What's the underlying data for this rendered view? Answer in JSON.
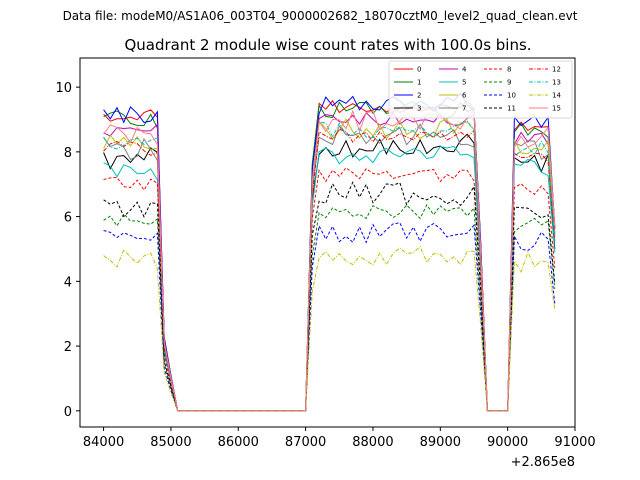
{
  "chart_data": {
    "type": "line",
    "suptitle": "Data file: modeM0/AS1A06_003T04_9000002682_18070cztM0_level2_quad_clean.evt",
    "title": "Quadrant 2 module wise count rates with 100.0s bins.",
    "xlabel": "",
    "ylabel": "",
    "x_offset_label": "+2.865e8",
    "xlim": [
      83650,
      91000
    ],
    "ylim": [
      -0.5,
      10.9
    ],
    "x_ticks": [
      84000,
      85000,
      86000,
      87000,
      88000,
      89000,
      90000,
      91000
    ],
    "x_tick_labels": [
      "84000",
      "85000",
      "86000",
      "87000",
      "88000",
      "89000",
      "90000",
      "91000"
    ],
    "y_ticks": [
      0,
      2,
      4,
      6,
      8,
      10
    ],
    "y_tick_labels": [
      "0",
      "2",
      "4",
      "6",
      "8",
      "10"
    ],
    "legend_position": "top-right",
    "grid": false,
    "segments": [
      {
        "start": 84000,
        "count": 9,
        "step": 100
      },
      {
        "start": 84900,
        "count": 21,
        "step": 100
      },
      {
        "start": 87000,
        "count": 26,
        "step": 100
      },
      {
        "start": 89600,
        "count": 4,
        "step": 100
      },
      {
        "start": 90000,
        "count": 8,
        "step": 100
      }
    ],
    "series": [
      {
        "name": "0",
        "color": "#ff0000",
        "dash": "solid",
        "base": 9.1,
        "post": 9.4,
        "final": 8.8
      },
      {
        "name": "1",
        "color": "#008000",
        "dash": "solid",
        "base": 9.0,
        "post": 9.3,
        "final": 8.7
      },
      {
        "name": "2",
        "color": "#0000ff",
        "dash": "solid",
        "base": 9.1,
        "post": 9.5,
        "final": 8.8
      },
      {
        "name": "3",
        "color": "#000000",
        "dash": "solid",
        "base": 7.8,
        "post": 8.2,
        "final": 7.7
      },
      {
        "name": "4",
        "color": "#bf00bf",
        "dash": "solid",
        "base": 8.7,
        "post": 9.0,
        "final": 8.4
      },
      {
        "name": "5",
        "color": "#00bfbf",
        "dash": "solid",
        "base": 7.4,
        "post": 7.9,
        "final": 7.5
      },
      {
        "name": "6",
        "color": "#bfbf00",
        "dash": "solid",
        "base": 8.3,
        "post": 8.7,
        "final": 8.2
      },
      {
        "name": "7",
        "color": "#808080",
        "dash": "solid",
        "base": 8.1,
        "post": 8.5,
        "final": 8.0
      },
      {
        "name": "8",
        "color": "#ff0000",
        "dash": "dashed",
        "base": 7.0,
        "post": 7.3,
        "final": 6.8
      },
      {
        "name": "9",
        "color": "#008000",
        "dash": "dashed",
        "base": 5.9,
        "post": 6.1,
        "final": 5.7
      },
      {
        "name": "10",
        "color": "#0000ff",
        "dash": "dashed",
        "base": 5.3,
        "post": 5.5,
        "final": 5.2
      },
      {
        "name": "11",
        "color": "#000000",
        "dash": "dashed",
        "base": 6.2,
        "post": 6.7,
        "final": 6.1
      },
      {
        "name": "12",
        "color": "#ff0000",
        "dash": "dashdot",
        "base": 8.1,
        "post": 8.5,
        "final": 7.9
      },
      {
        "name": "13",
        "color": "#00bfbf",
        "dash": "dashdot",
        "base": 8.3,
        "post": 8.7,
        "final": 8.1
      },
      {
        "name": "14",
        "color": "#bfbf00",
        "dash": "dashdot",
        "base": 4.7,
        "post": 4.8,
        "final": 4.6
      },
      {
        "name": "15",
        "color": "#ff7f7f",
        "dash": "solid",
        "base": 8.5,
        "post": 9.0,
        "final": 8.5
      }
    ]
  }
}
